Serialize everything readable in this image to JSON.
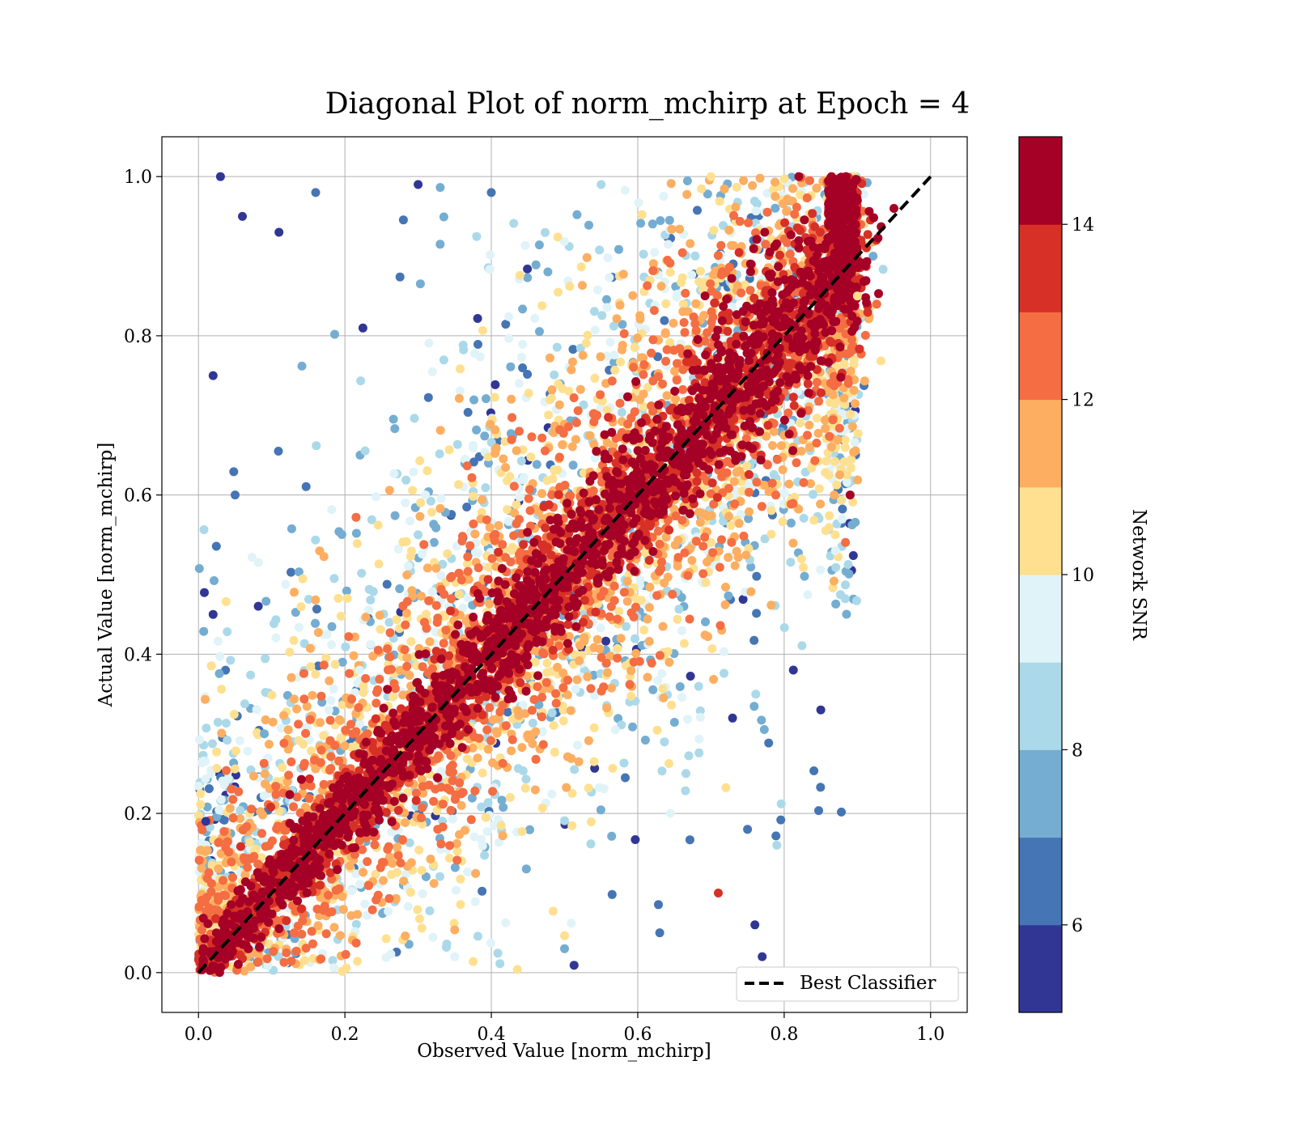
{
  "chart_data": {
    "type": "scatter",
    "title": "Diagonal Plot of norm_mchirp at Epoch = 4",
    "xlabel": "Observed Value [norm_mchirp]",
    "ylabel": "Actual Value [norm_mchirp]",
    "xlim": [
      -0.05,
      1.05
    ],
    "ylim": [
      -0.05,
      1.05
    ],
    "xticks": [
      "0.0",
      "0.2",
      "0.4",
      "0.6",
      "0.8",
      "1.0"
    ],
    "yticks": [
      "0.0",
      "0.2",
      "0.4",
      "0.6",
      "0.8",
      "1.0"
    ],
    "grid": true,
    "colorbar": {
      "label": "Network SNR",
      "range": [
        5,
        15
      ],
      "levels": 10,
      "ticks": [
        "6",
        "8",
        "10",
        "12",
        "14"
      ],
      "colors": [
        "#313695",
        "#4575b4",
        "#74add1",
        "#abd9e9",
        "#e0f3f8",
        "#fee090",
        "#fdae61",
        "#f46d43",
        "#d73027",
        "#a50026"
      ]
    },
    "series": [
      {
        "name": "Best Classifier",
        "kind": "reference-line",
        "style": "dashed",
        "color": "#000000",
        "x": [
          0.0,
          1.0
        ],
        "y": [
          0.0,
          1.0
        ]
      }
    ],
    "scatter_summary": {
      "description_of_distribution": "dense band along diagonal colored high SNR; low-SNR points scattered away from diagonal",
      "sample_points": [
        [
          0.03,
          1.0,
          5
        ],
        [
          0.06,
          0.95,
          5
        ],
        [
          0.11,
          0.93,
          5
        ],
        [
          0.16,
          0.98,
          6
        ],
        [
          0.3,
          0.99,
          5
        ],
        [
          0.4,
          0.98,
          6
        ],
        [
          0.55,
          0.99,
          8
        ],
        [
          0.7,
          1.0,
          10
        ],
        [
          0.82,
          1.0,
          14
        ],
        [
          0.88,
          0.99,
          15
        ],
        [
          0.02,
          0.75,
          5
        ],
        [
          0.05,
          0.6,
          6
        ],
        [
          0.02,
          0.45,
          5
        ],
        [
          0.01,
          0.19,
          5
        ],
        [
          0.09,
          0.3,
          7
        ],
        [
          0.22,
          0.38,
          9
        ],
        [
          0.3,
          0.55,
          8
        ],
        [
          0.85,
          0.33,
          5
        ],
        [
          0.75,
          0.18,
          6
        ],
        [
          0.79,
          0.16,
          8
        ],
        [
          0.76,
          0.06,
          5
        ],
        [
          0.77,
          0.02,
          5
        ],
        [
          0.71,
          0.1,
          13
        ],
        [
          0.63,
          0.05,
          6
        ],
        [
          0.5,
          0.03,
          7
        ],
        [
          0.35,
          0.02,
          9
        ],
        [
          0.87,
          0.53,
          9
        ],
        [
          0.9,
          0.85,
          10
        ],
        [
          0.89,
          0.6,
          14
        ],
        [
          0.95,
          0.96,
          15
        ]
      ]
    }
  }
}
